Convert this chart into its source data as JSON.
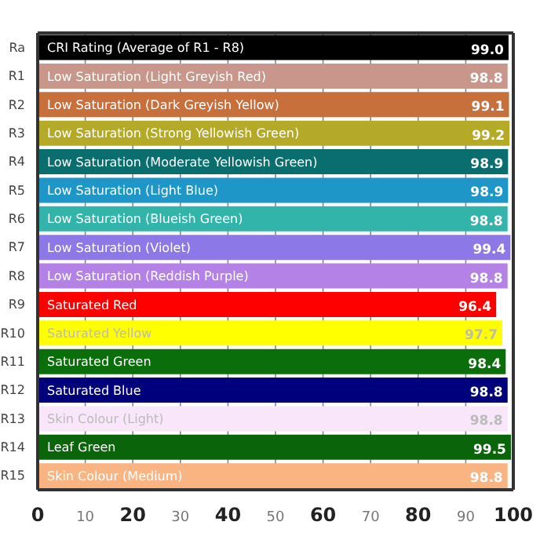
{
  "chart_data": {
    "type": "bar",
    "orientation": "horizontal",
    "categories": [
      "Ra",
      "R1",
      "R2",
      "R3",
      "R4",
      "R5",
      "R6",
      "R7",
      "R8",
      "R9",
      "R10",
      "R11",
      "R12",
      "R13",
      "R14",
      "R15"
    ],
    "values": [
      99.0,
      98.8,
      99.1,
      99.2,
      98.9,
      98.9,
      98.8,
      99.4,
      98.8,
      96.4,
      97.7,
      98.4,
      98.8,
      98.8,
      99.5,
      98.8
    ],
    "value_labels": [
      "99.0",
      "98.8",
      "99.1",
      "99.2",
      "98.9",
      "98.9",
      "98.8",
      "99.4",
      "98.8",
      "96.4",
      "97.7",
      "98.4",
      "98.8",
      "98.8",
      "99.5",
      "98.8"
    ],
    "colors": [
      "#000000",
      "#c8968a",
      "#c8703c",
      "#b4aa28",
      "#0a6e6e",
      "#1e96c8",
      "#32b4aa",
      "#8c78e6",
      "#b482e6",
      "#ff0000",
      "#ffff00",
      "#0a6e0a",
      "#00007d",
      "#fae6fa",
      "#0a640a",
      "#fab482"
    ],
    "xlim": [
      0,
      100
    ],
    "xticks": [
      0,
      10,
      20,
      30,
      40,
      50,
      60,
      70,
      80,
      90,
      100
    ],
    "grid": "x",
    "annotations": [
      {
        "text": "CRI Rating (Average of R1 - R8)",
        "y": "Ra"
      },
      {
        "text": "Low Saturation (Light Greyish Red)",
        "y": "R1"
      },
      {
        "text": "Low Saturation (Dark Greyish Yellow)",
        "y": "R2"
      },
      {
        "text": "Low Saturation (Strong Yellowish Green)",
        "y": "R3"
      },
      {
        "text": "Low Saturation (Moderate Yellowish Green)",
        "y": "R4"
      },
      {
        "text": "Low Saturation (Light Blue)",
        "y": "R5"
      },
      {
        "text": "Low Saturation (Blueish Green)",
        "y": "R6"
      },
      {
        "text": "Low Saturation (Violet)",
        "y": "R7"
      },
      {
        "text": "Low Saturation (Reddish Purple)",
        "y": "R8"
      },
      {
        "text": "Saturated Red",
        "y": "R9"
      },
      {
        "text": "Saturated Yellow",
        "y": "R10"
      },
      {
        "text": "Saturated Green",
        "y": "R11"
      },
      {
        "text": "Saturated Blue",
        "y": "R12"
      },
      {
        "text": "Skin Colour (Light)",
        "y": "R13"
      },
      {
        "text": "Leaf Green",
        "y": "R14"
      },
      {
        "text": "Skin Colour (Medium)",
        "y": "R15"
      }
    ]
  }
}
